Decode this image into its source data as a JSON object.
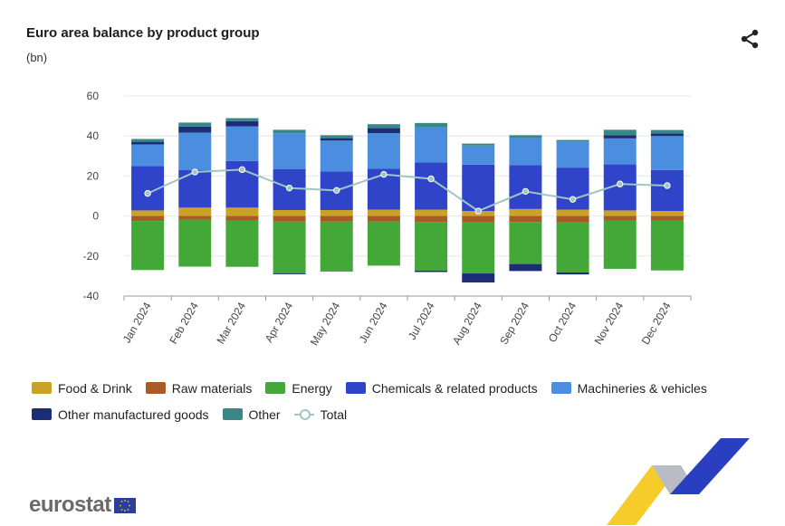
{
  "header": {
    "title": "Euro area balance by product group",
    "unit": "(bn)"
  },
  "toolbar": {
    "share_icon": "share-icon"
  },
  "brand": {
    "name": "eurostat"
  },
  "colors": {
    "food": "#c9a227",
    "raw": "#a85b25",
    "energy": "#43a838",
    "chem": "#2f44c9",
    "mach": "#4b8ee0",
    "otherman": "#1c2d77",
    "other": "#3a8886",
    "total": "#9fc6c4",
    "grid": "#e6e6e6",
    "axis": "#555555"
  },
  "legend": [
    {
      "key": "food",
      "label": "Food & Drink"
    },
    {
      "key": "raw",
      "label": "Raw materials"
    },
    {
      "key": "energy",
      "label": "Energy"
    },
    {
      "key": "chem",
      "label": "Chemicals & related products"
    },
    {
      "key": "mach",
      "label": "Machineries & vehicles"
    },
    {
      "key": "otherman",
      "label": "Other manufactured goods"
    },
    {
      "key": "other",
      "label": "Other"
    },
    {
      "key": "total",
      "label": "Total"
    }
  ],
  "chart_data": {
    "type": "bar",
    "stacked": true,
    "title": "Euro area balance by product group",
    "ylabel": "(bn)",
    "ylim": [
      -40,
      60
    ],
    "yticks": [
      60,
      40,
      20,
      0,
      -20,
      -40
    ],
    "categories": [
      "Jan 2024",
      "Feb 2024",
      "Mar 2024",
      "Apr 2024",
      "May 2024",
      "Jun 2024",
      "Jul 2024",
      "Aug 2024",
      "Sep 2024",
      "Oct 2024",
      "Nov 2024",
      "Dec 2024"
    ],
    "series": [
      {
        "key": "food",
        "name": "Food & Drink",
        "values": [
          2.8,
          4.2,
          4.2,
          3.0,
          3.0,
          3.2,
          3.2,
          2.5,
          3.5,
          3.2,
          2.8,
          2.5
        ]
      },
      {
        "key": "raw",
        "name": "Raw materials",
        "values": [
          -2.5,
          -1.8,
          -2.2,
          -2.8,
          -2.8,
          -2.8,
          -3.0,
          -3.2,
          -3.0,
          -3.2,
          -2.2,
          -2.2
        ]
      },
      {
        "key": "energy",
        "name": "Energy",
        "values": [
          -24.5,
          -23.5,
          -23.2,
          -25.8,
          -25.0,
          -22.0,
          -24.3,
          -25.5,
          -21.0,
          -25.0,
          -24.2,
          -25.0
        ]
      },
      {
        "key": "chem",
        "name": "Chemicals & related products",
        "values": [
          22.2,
          18.7,
          23.3,
          20.5,
          19.2,
          20.4,
          23.6,
          23.2,
          22.0,
          21.0,
          23.0,
          20.5
        ]
      },
      {
        "key": "mach",
        "name": "Machineries & vehicles",
        "values": [
          10.8,
          18.8,
          17.3,
          17.8,
          15.5,
          17.8,
          17.5,
          9.5,
          13.5,
          13.0,
          13.0,
          17.0
        ]
      },
      {
        "key": "otherman",
        "name": "Other manufactured goods",
        "values": [
          1.3,
          3.0,
          2.6,
          -0.5,
          1.2,
          2.5,
          -0.7,
          -4.5,
          -3.5,
          -1.0,
          1.5,
          1.2
        ]
      },
      {
        "key": "other",
        "name": "Other",
        "values": [
          1.4,
          2.0,
          1.5,
          1.8,
          1.5,
          2.0,
          2.2,
          1.0,
          1.4,
          0.8,
          2.8,
          1.8
        ]
      }
    ],
    "total": {
      "key": "total",
      "name": "Total",
      "values": [
        11.3,
        22.0,
        23.2,
        14.0,
        12.8,
        20.8,
        18.6,
        2.5,
        12.3,
        8.3,
        16.0,
        15.2
      ]
    }
  }
}
